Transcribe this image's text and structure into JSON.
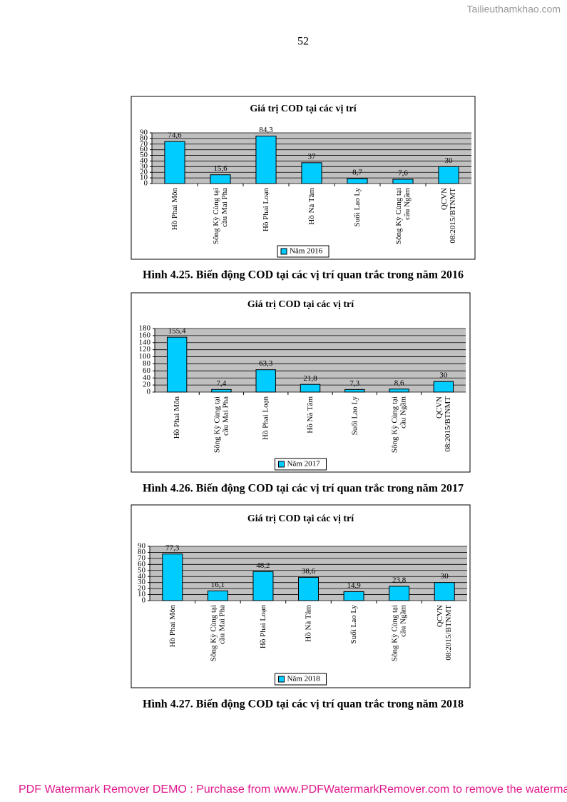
{
  "watermark_top": "Tailieuthamkhao.com",
  "page_number": "52",
  "chart_data": [
    {
      "type": "bar",
      "title": "Giá trị COD tại các vị trí",
      "categories": [
        "Hồ Phai Môn",
        "Sông Kỳ Cùng tại\ncầu Mai Pha",
        "Hồ Phai Loạn",
        "Hồ Nà Tâm",
        "Suối Lao Ly",
        "Sông Kỳ Cùng tại\ncầu Ngầm",
        "QCVN\n08:2015/BTNMT"
      ],
      "series": [
        {
          "name": "Năm 2016",
          "color": "#00ccff",
          "values": [
            74.6,
            15.6,
            84.3,
            37,
            8.7,
            7.6,
            30
          ],
          "value_labels": [
            "74,6",
            "15,6",
            "84,3",
            "37",
            "8,7",
            "7,6",
            "30"
          ]
        }
      ],
      "ylim": [
        0,
        90
      ],
      "yticks": [
        0,
        10,
        20,
        30,
        40,
        50,
        60,
        70,
        80,
        90
      ],
      "grid": true
    },
    {
      "type": "bar",
      "title": "Giá trị COD tại các vị trí",
      "categories": [
        "Hồ Phai Môn",
        "Sông Kỳ Cùng tại\ncầu Mai Pha",
        "Hồ Phai Loạn",
        "Hồ Nà Tâm",
        "Suối Lao Ly",
        "Sông Kỳ Cùng tại\ncầu Ngầm",
        "QCVN\n08:2015/BTNMT"
      ],
      "series": [
        {
          "name": "Năm 2017",
          "color": "#00ccff",
          "values": [
            155.4,
            7.4,
            63.3,
            21.8,
            7.3,
            8.6,
            30
          ],
          "value_labels": [
            "155,4",
            "7,4",
            "63,3",
            "21,8",
            "7,3",
            "8,6",
            "30"
          ]
        }
      ],
      "ylim": [
        0,
        180
      ],
      "yticks": [
        0,
        20,
        40,
        60,
        80,
        100,
        120,
        140,
        160,
        180
      ],
      "grid": true
    },
    {
      "type": "bar",
      "title": "Giá trị COD tại các vị trí",
      "categories": [
        "Hồ Phai Môn",
        "Sông Kỳ Cùng tại\ncầu Mai Pha",
        "Hồ Phai Loạn",
        "Hồ Nà Tâm",
        "Suối Lao Ly",
        "Sông Kỳ Cùng tại\ncầu Ngầm",
        "QCVN\n08:2015/BTNMT"
      ],
      "series": [
        {
          "name": "Năm 2018",
          "color": "#00ccff",
          "values": [
            77.3,
            16.1,
            48.2,
            38.6,
            14.9,
            23.8,
            30
          ],
          "value_labels": [
            "77,3",
            "16,1",
            "48,2",
            "38,6",
            "14,9",
            "23,8",
            "30"
          ]
        }
      ],
      "ylim": [
        0,
        90
      ],
      "yticks": [
        0,
        10,
        20,
        30,
        40,
        50,
        60,
        70,
        80,
        90
      ],
      "grid": true
    }
  ],
  "captions": [
    "Hình 4.25. Biến động COD  tại các vị trí quan trắc trong năm 2016",
    "Hình 4.26. Biến động COD  tại các vị trí quan trắc trong năm 2017",
    "Hình 4.27. Biến động COD  tại các vị trí quan trắc trong năm 2018"
  ],
  "footer": "PDF Watermark Remover DEMO : Purchase from www.PDFWatermarkRemover.com to remove the waterma"
}
